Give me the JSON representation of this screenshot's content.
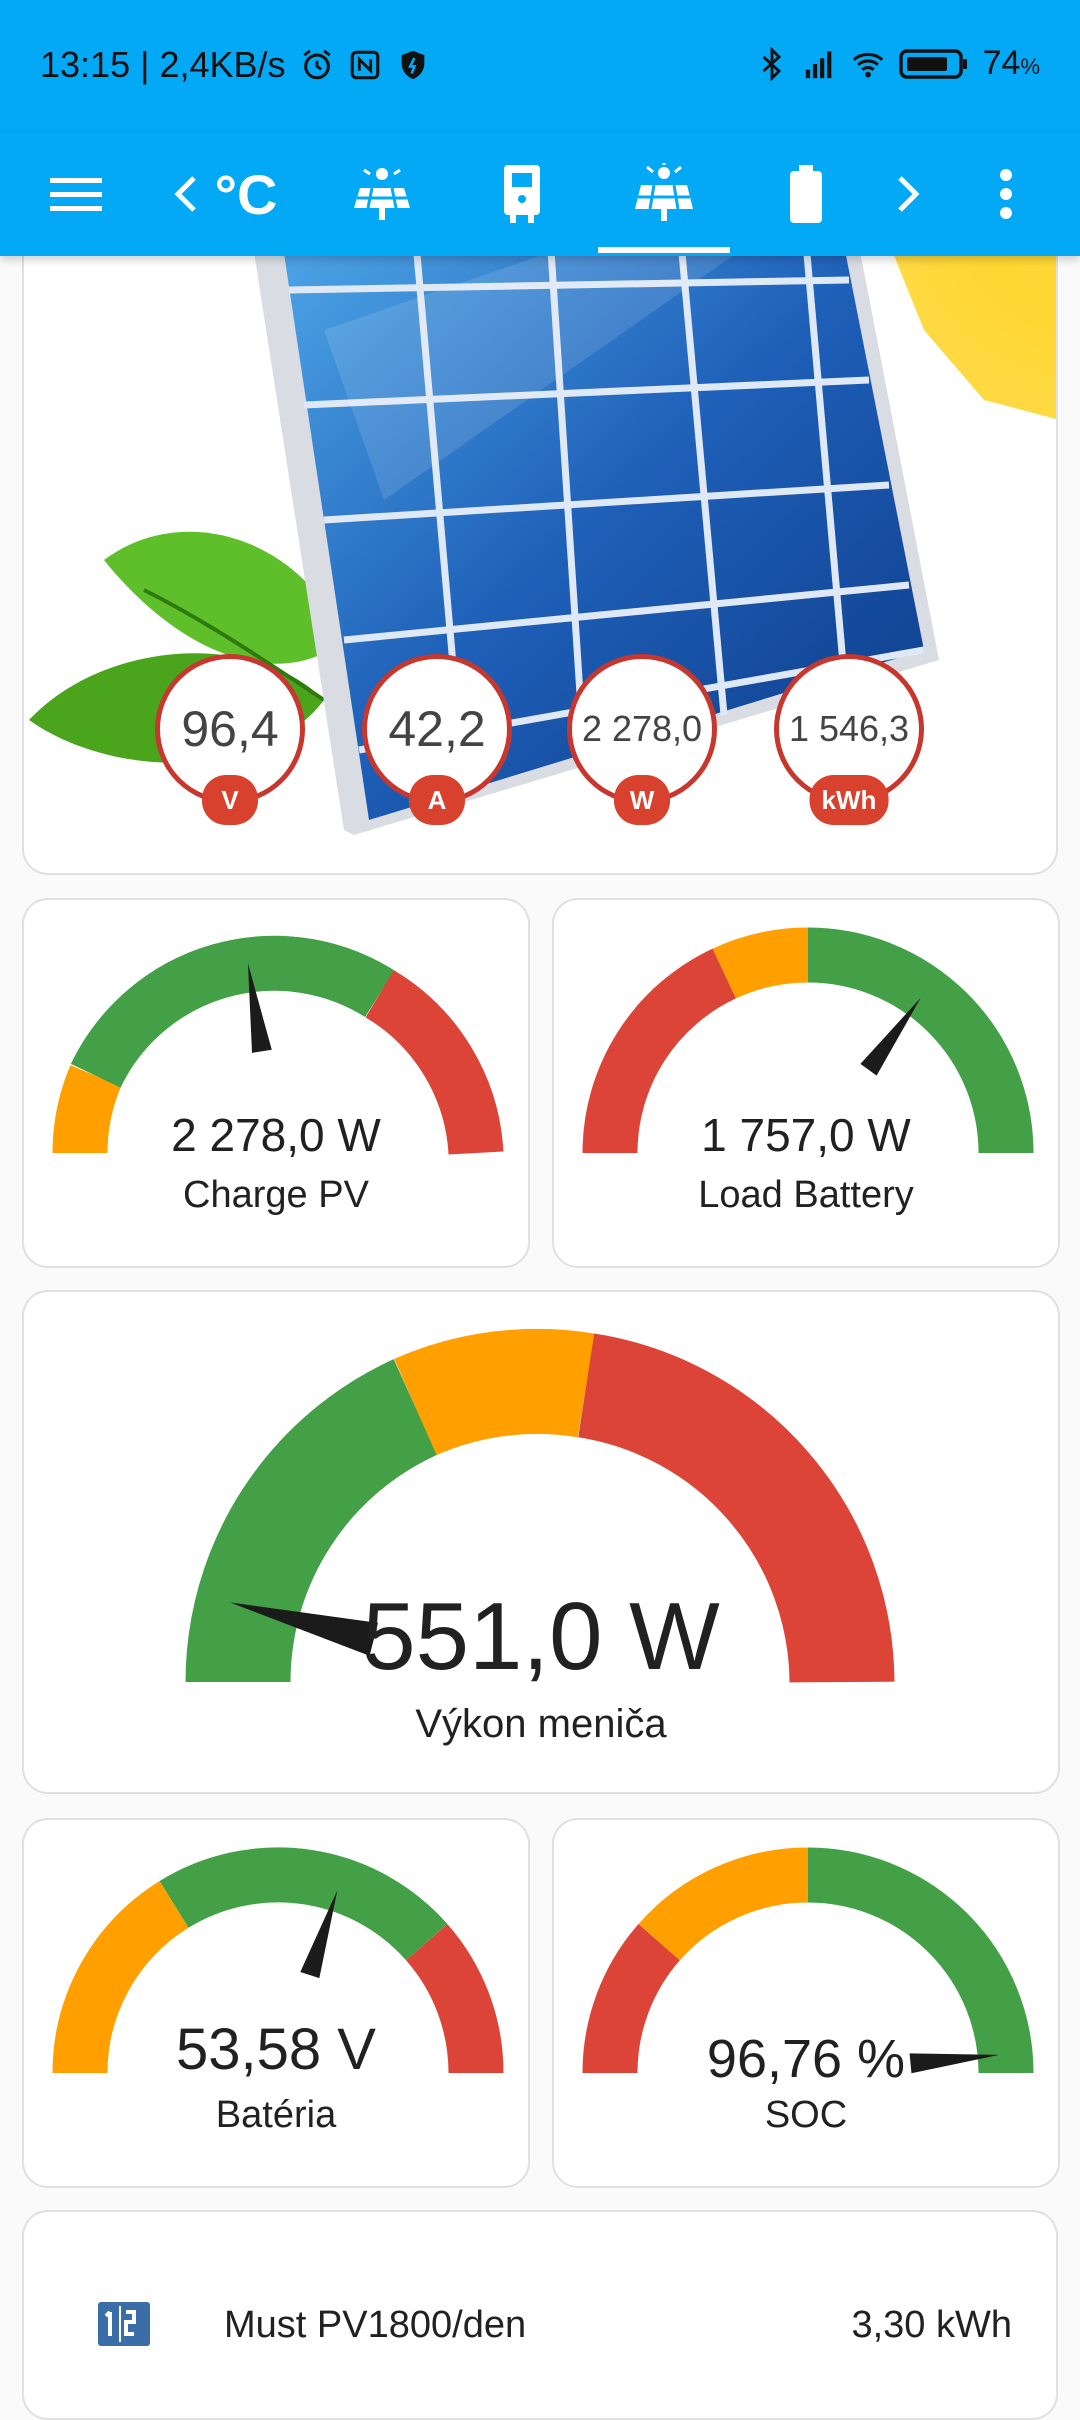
{
  "status_bar": {
    "time_speed": "13:15 | 2,4KB/s",
    "battery": "74",
    "battery_unit": "%"
  },
  "toolbar": {
    "menu_icon": "menu-icon",
    "prev_icon": "chevron-left-icon",
    "next_icon": "chevron-right-icon",
    "more_icon": "more-vert-icon",
    "tabs": [
      {
        "icon": "temperature-celsius-icon",
        "label": "°C"
      },
      {
        "icon": "solar-panel-icon"
      },
      {
        "icon": "inverter-icon"
      },
      {
        "icon": "solar-power-icon",
        "active": true
      },
      {
        "icon": "battery-icon"
      }
    ]
  },
  "pv_banner": {
    "image": "solar-panel-with-sun-and-leaves",
    "bubbles": [
      {
        "value": "96,4",
        "unit": "V"
      },
      {
        "value": "42,2",
        "unit": "A"
      },
      {
        "value": "2 278,0",
        "unit": "W"
      },
      {
        "value": "1 546,3",
        "unit": "kWh"
      }
    ]
  },
  "gauges": {
    "charge_pv": {
      "value": "2 278,0 W",
      "label": "Charge PV",
      "needle_fraction": 0.45
    },
    "load_battery": {
      "value": "1 757,0 W",
      "label": "Load Battery",
      "needle_fraction": 0.7
    },
    "inverter_power": {
      "value": "551,0 W",
      "label": "Výkon meniča",
      "needle_fraction": 0.08
    },
    "battery_voltage": {
      "value": "53,58 V",
      "label": "Batéria",
      "needle_fraction": 0.6
    },
    "soc": {
      "value": "96,76 %",
      "label": "SOC",
      "needle_fraction": 0.97
    }
  },
  "energy": {
    "icon": "counter-icon",
    "name": "Must PV1800/den",
    "value": "3,30 kWh"
  },
  "colors": {
    "primary": "#03a9f4",
    "gauge_green": "#43a047",
    "gauge_orange": "#ffa000",
    "gauge_red": "#db4437",
    "badge_red": "#d9412f"
  }
}
